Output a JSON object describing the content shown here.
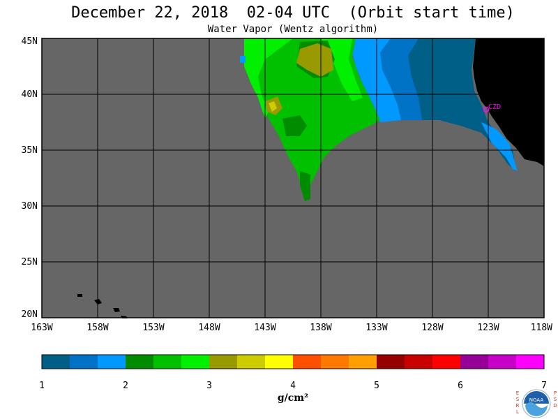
{
  "header": {
    "title": "December 22, 2018  02-04 UTC  (Orbit start time)",
    "subtitle": "Water Vapor (Wentz algorithm)"
  },
  "map": {
    "latitude_labels": [
      "45N",
      "40N",
      "35N",
      "30N",
      "25N",
      "20N"
    ],
    "longitude_labels": [
      "163W",
      "158W",
      "153W",
      "148W",
      "143W",
      "138W",
      "133W",
      "128W",
      "123W",
      "118W"
    ],
    "station_marker": {
      "label": "CZD",
      "color": "#ff00ff"
    },
    "colors": {
      "background_no_data": "#666666",
      "land": "#000000",
      "grid": "#000000"
    }
  },
  "colorbar": {
    "tick_labels": [
      "1",
      "2",
      "3",
      "4",
      "5",
      "6",
      "7"
    ],
    "units": "g/cm²",
    "colors": [
      "#005f87",
      "#0073c6",
      "#0099ff",
      "#008c00",
      "#00c000",
      "#00f000",
      "#999900",
      "#cccc00",
      "#ffff00",
      "#ff5000",
      "#ff7800",
      "#ffa000",
      "#960000",
      "#c80000",
      "#ff0000",
      "#960096",
      "#c800c8",
      "#ff00ff"
    ]
  },
  "logo": {
    "left_letters": "ESRL",
    "right_letters": "PSD",
    "center_text": "NOAA"
  }
}
